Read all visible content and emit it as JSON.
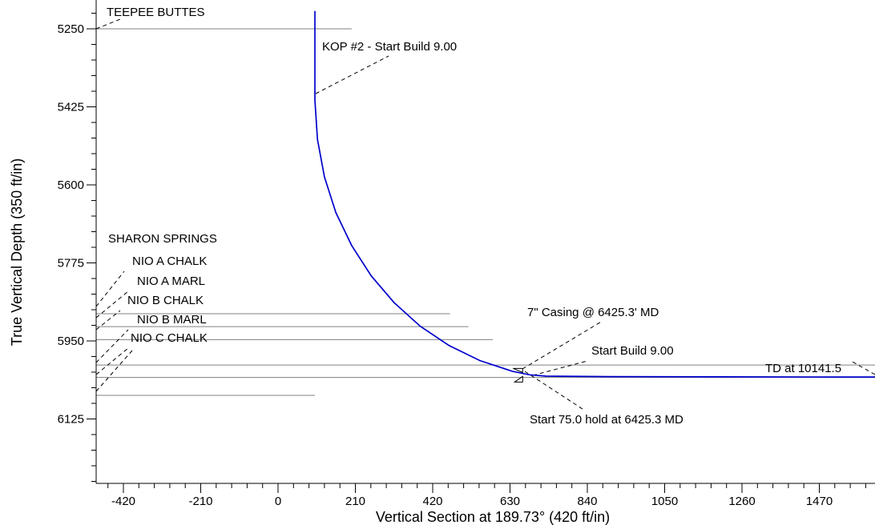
{
  "chart_data": {
    "type": "line",
    "title": "",
    "xlabel": "Vertical Section at 189.73° (420 ft/in)",
    "ylabel": "True Vertical Depth (350 ft/in)",
    "xlim": [
      -525,
      1660
    ],
    "ylim": [
      6275,
      5210
    ],
    "x_ticks": [
      -420,
      -210,
      0,
      210,
      420,
      630,
      840,
      1050,
      1260,
      1470
    ],
    "y_ticks": [
      5250,
      5425,
      5600,
      5775,
      5950,
      6125
    ],
    "y_inverted": true,
    "grid": false,
    "colors": {
      "wellpath": "#0000cc",
      "formation": "#808080",
      "leader": "#000000"
    },
    "series": [
      {
        "values": [
          [
            100,
            5210
          ],
          [
            100,
            5400
          ],
          [
            100.2,
            5410
          ],
          [
            107,
            5498
          ],
          [
            126,
            5582
          ],
          [
            157,
            5662
          ],
          [
            200,
            5736
          ],
          [
            253,
            5804
          ],
          [
            315,
            5864
          ],
          [
            386,
            5917
          ],
          [
            464,
            5960
          ],
          [
            548,
            5994
          ],
          [
            636,
            6018
          ],
          [
            683,
            6026
          ],
          [
            728,
            6029
          ],
          [
            900,
            6030
          ],
          [
            1200,
            6030.5
          ],
          [
            1500,
            6031
          ],
          [
            1660,
            6031
          ]
        ]
      }
    ],
    "formations": [
      {
        "name": "TEEPEE BUTTES",
        "tvd": 5250,
        "x_end": 200
      },
      {
        "name": "SHARON SPRINGS",
        "tvd": 5889,
        "x_end": 467
      },
      {
        "name": "NIO A CHALK",
        "tvd": 5918,
        "x_end": 517
      },
      {
        "name": "NIO A MARL",
        "tvd": 5947,
        "x_end": 583
      },
      {
        "name": "NIO B CHALK",
        "tvd": 6004,
        "x_end": 1660
      },
      {
        "name": "NIO B MARL",
        "tvd": 6032,
        "x_end": 1660
      },
      {
        "name": "NIO C CHALK",
        "tvd": 6072,
        "x_end": 100
      }
    ],
    "annotations": [
      {
        "text": "KOP #2 - Start Build 9.00",
        "x": 100,
        "tvd": 5400
      },
      {
        "text": "7\" Casing @ 6425.3' MD",
        "x": 660,
        "tvd": 6026
      },
      {
        "text": "Start Build 9.00",
        "x": 728,
        "tvd": 6029
      },
      {
        "text": "TD at 10141.5",
        "x": 1660,
        "tvd": 6031
      },
      {
        "text": "Start 75.0 hold at 6425.3 MD",
        "x": 660,
        "tvd": 6026
      }
    ],
    "casing_marker": {
      "x": 660,
      "tvd": 6026
    }
  }
}
